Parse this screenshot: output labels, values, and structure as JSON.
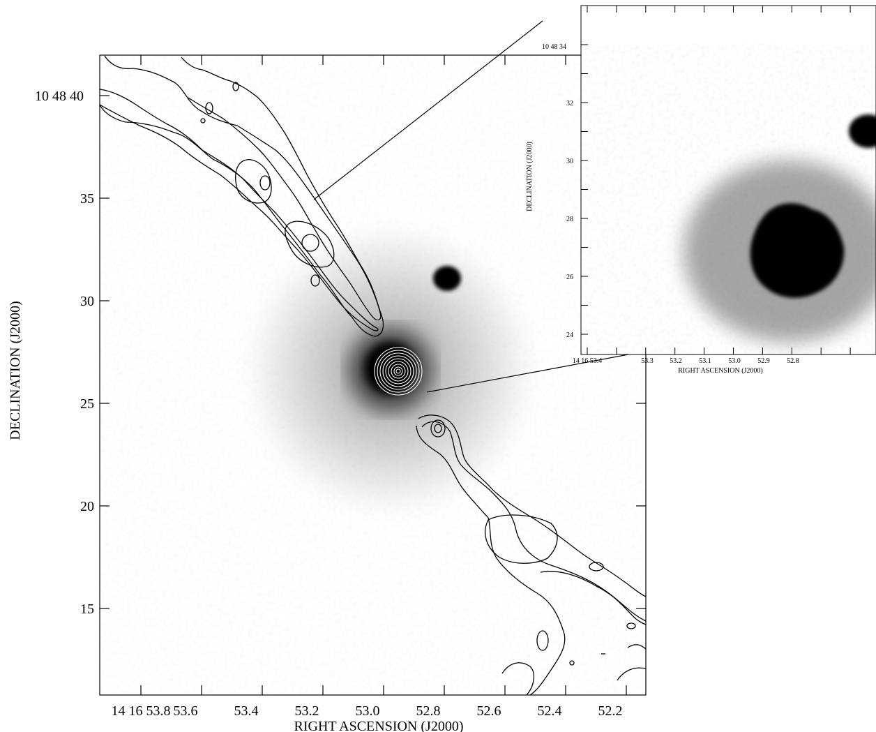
{
  "main_panel": {
    "xlabel": "RIGHT ASCENSION (J2000)",
    "ylabel": "DECLINATION (J2000)",
    "x_ticks": [
      "14 16 53.8",
      "53.6",
      "53.4",
      "53.2",
      "53.0",
      "52.8",
      "52.6",
      "52.4",
      "52.2"
    ],
    "y_ticks": [
      "10 48 40",
      "35",
      "30",
      "25",
      "20",
      "15"
    ]
  },
  "inset_panel": {
    "xlabel": "RIGHT ASCENSION (J2000)",
    "ylabel": "DECLINATION (J2000)",
    "x_ticks": [
      "14 16 53.4",
      "53.3",
      "53.2",
      "53.1",
      "53.0",
      "52.9",
      "52.8"
    ],
    "y_ticks": [
      "10 48 34",
      "32",
      "30",
      "28",
      "26",
      "24"
    ]
  }
}
